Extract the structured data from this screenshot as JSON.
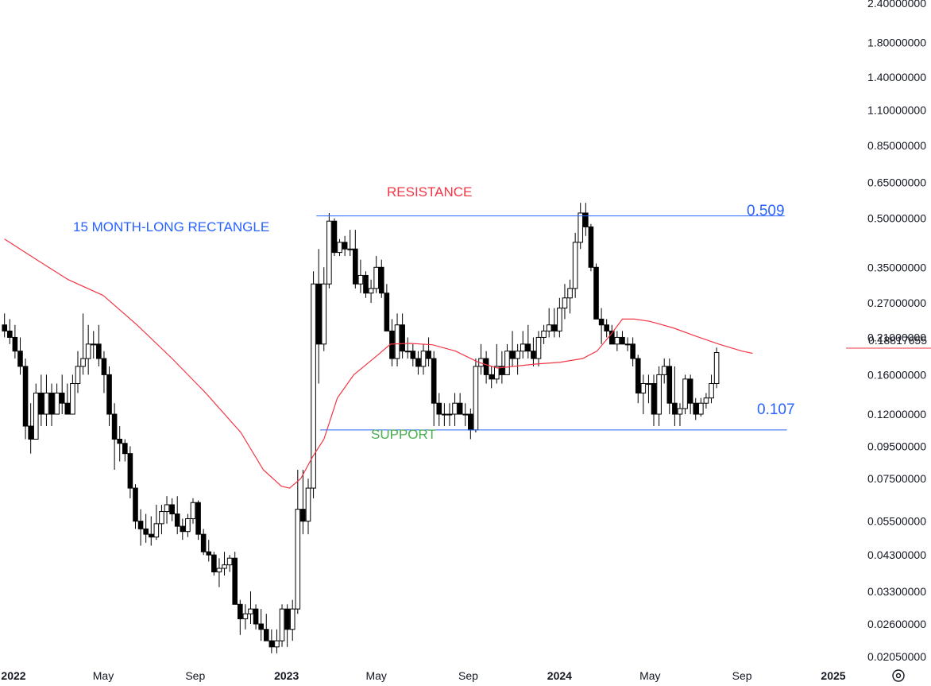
{
  "chart_data": {
    "type": "candlestick",
    "scale": "log",
    "y_ticks": [
      "2.40000000",
      "1.80000000",
      "1.40000000",
      "1.10000000",
      "0.85000000",
      "0.65000000",
      "0.50000000",
      "0.35000000",
      "0.27000000",
      "0.21000000",
      "0.16000000",
      "0.12000000",
      "0.09500000",
      "0.07500000",
      "0.05500000",
      "0.04300000",
      "0.03300000",
      "0.02600000",
      "0.02050000"
    ],
    "y_tick_values": [
      2.4,
      1.8,
      1.4,
      1.1,
      0.85,
      0.65,
      0.5,
      0.35,
      0.27,
      0.21,
      0.16,
      0.12,
      0.095,
      0.075,
      0.055,
      0.043,
      0.033,
      0.026,
      0.0205
    ],
    "x_ticks": [
      {
        "label": "2022",
        "date": "2022-01-01",
        "year": true
      },
      {
        "label": "May",
        "date": "2022-05-01",
        "year": false
      },
      {
        "label": "Sep",
        "date": "2022-09-01",
        "year": false
      },
      {
        "label": "2023",
        "date": "2023-01-01",
        "year": true
      },
      {
        "label": "May",
        "date": "2023-05-01",
        "year": false
      },
      {
        "label": "Sep",
        "date": "2023-09-01",
        "year": false
      },
      {
        "label": "2024",
        "date": "2024-01-01",
        "year": true
      },
      {
        "label": "May",
        "date": "2024-05-01",
        "year": false
      },
      {
        "label": "Sep",
        "date": "2024-09-01",
        "year": false
      },
      {
        "label": "2025",
        "date": "2025-01-01",
        "year": true
      }
    ],
    "last_price_label": "0.18817655",
    "last_price": 0.18817655,
    "annotations": {
      "title": "15 MONTH-LONG RECTANGLE",
      "resistance_label": "RESISTANCE",
      "support_label": "SUPPORT",
      "resistance_value_label": "0.509",
      "support_value_label": "0.107"
    },
    "levels": {
      "resistance": 0.509,
      "resistance_start": "2023-02-10",
      "resistance_end": "2024-10-28",
      "support": 0.107,
      "support_start": "2023-02-15",
      "support_end": "2024-10-31"
    },
    "weekly_candles": [
      [
        0.23,
        0.25,
        0.21,
        0.22
      ],
      [
        0.22,
        0.24,
        0.2,
        0.21
      ],
      [
        0.21,
        0.23,
        0.18,
        0.19
      ],
      [
        0.19,
        0.21,
        0.16,
        0.17
      ],
      [
        0.17,
        0.18,
        0.1,
        0.11
      ],
      [
        0.11,
        0.13,
        0.09,
        0.1
      ],
      [
        0.1,
        0.15,
        0.1,
        0.14
      ],
      [
        0.14,
        0.16,
        0.11,
        0.12
      ],
      [
        0.12,
        0.16,
        0.11,
        0.14
      ],
      [
        0.14,
        0.15,
        0.11,
        0.12
      ],
      [
        0.12,
        0.15,
        0.12,
        0.14
      ],
      [
        0.14,
        0.16,
        0.12,
        0.13
      ],
      [
        0.13,
        0.15,
        0.12,
        0.12
      ],
      [
        0.12,
        0.16,
        0.12,
        0.15
      ],
      [
        0.15,
        0.19,
        0.14,
        0.17
      ],
      [
        0.17,
        0.25,
        0.16,
        0.18
      ],
      [
        0.18,
        0.23,
        0.16,
        0.2
      ],
      [
        0.2,
        0.22,
        0.18,
        0.2
      ],
      [
        0.2,
        0.23,
        0.17,
        0.18
      ],
      [
        0.18,
        0.19,
        0.14,
        0.16
      ],
      [
        0.16,
        0.17,
        0.11,
        0.12
      ],
      [
        0.12,
        0.13,
        0.08,
        0.1
      ],
      [
        0.1,
        0.11,
        0.085,
        0.097
      ],
      [
        0.097,
        0.1,
        0.085,
        0.09
      ],
      [
        0.09,
        0.095,
        0.065,
        0.07
      ],
      [
        0.07,
        0.072,
        0.052,
        0.055
      ],
      [
        0.055,
        0.06,
        0.046,
        0.052
      ],
      [
        0.052,
        0.058,
        0.047,
        0.05
      ],
      [
        0.05,
        0.057,
        0.046,
        0.049
      ],
      [
        0.049,
        0.062,
        0.048,
        0.054
      ],
      [
        0.054,
        0.062,
        0.05,
        0.059
      ],
      [
        0.059,
        0.066,
        0.054,
        0.062
      ],
      [
        0.062,
        0.065,
        0.055,
        0.058
      ],
      [
        0.058,
        0.066,
        0.05,
        0.053
      ],
      [
        0.053,
        0.056,
        0.048,
        0.051
      ],
      [
        0.051,
        0.058,
        0.049,
        0.056
      ],
      [
        0.056,
        0.065,
        0.054,
        0.063
      ],
      [
        0.063,
        0.064,
        0.048,
        0.05
      ],
      [
        0.05,
        0.052,
        0.043,
        0.044
      ],
      [
        0.044,
        0.048,
        0.041,
        0.043
      ],
      [
        0.043,
        0.044,
        0.037,
        0.038
      ],
      [
        0.038,
        0.042,
        0.034,
        0.039
      ],
      [
        0.039,
        0.044,
        0.037,
        0.04
      ],
      [
        0.04,
        0.043,
        0.038,
        0.042
      ],
      [
        0.042,
        0.044,
        0.03,
        0.03
      ],
      [
        0.03,
        0.031,
        0.024,
        0.027
      ],
      [
        0.027,
        0.03,
        0.025,
        0.028
      ],
      [
        0.028,
        0.033,
        0.026,
        0.029
      ],
      [
        0.029,
        0.03,
        0.025,
        0.026
      ],
      [
        0.026,
        0.029,
        0.023,
        0.025
      ],
      [
        0.025,
        0.028,
        0.023,
        0.023
      ],
      [
        0.023,
        0.025,
        0.021,
        0.022
      ],
      [
        0.022,
        0.025,
        0.021,
        0.023
      ],
      [
        0.023,
        0.03,
        0.022,
        0.029
      ],
      [
        0.029,
        0.03,
        0.022,
        0.025
      ],
      [
        0.025,
        0.031,
        0.023,
        0.029
      ],
      [
        0.029,
        0.08,
        0.028,
        0.06
      ],
      [
        0.06,
        0.08,
        0.05,
        0.055
      ],
      [
        0.055,
        0.075,
        0.05,
        0.07
      ],
      [
        0.07,
        0.34,
        0.065,
        0.31
      ],
      [
        0.31,
        0.4,
        0.15,
        0.2
      ],
      [
        0.2,
        0.35,
        0.19,
        0.31
      ],
      [
        0.31,
        0.52,
        0.3,
        0.49
      ],
      [
        0.49,
        0.5,
        0.38,
        0.39
      ],
      [
        0.39,
        0.43,
        0.38,
        0.42
      ],
      [
        0.42,
        0.44,
        0.38,
        0.4
      ],
      [
        0.4,
        0.46,
        0.38,
        0.4
      ],
      [
        0.4,
        0.46,
        0.3,
        0.31
      ],
      [
        0.31,
        0.37,
        0.29,
        0.33
      ],
      [
        0.33,
        0.34,
        0.28,
        0.29
      ],
      [
        0.29,
        0.32,
        0.27,
        0.3
      ],
      [
        0.3,
        0.38,
        0.29,
        0.35
      ],
      [
        0.35,
        0.37,
        0.28,
        0.29
      ],
      [
        0.29,
        0.31,
        0.22,
        0.22
      ],
      [
        0.22,
        0.24,
        0.17,
        0.18
      ],
      [
        0.18,
        0.25,
        0.17,
        0.23
      ],
      [
        0.23,
        0.25,
        0.18,
        0.19
      ],
      [
        0.19,
        0.21,
        0.18,
        0.19
      ],
      [
        0.19,
        0.2,
        0.17,
        0.18
      ],
      [
        0.18,
        0.19,
        0.16,
        0.17
      ],
      [
        0.17,
        0.2,
        0.16,
        0.19
      ],
      [
        0.19,
        0.21,
        0.17,
        0.18
      ],
      [
        0.18,
        0.19,
        0.11,
        0.13
      ],
      [
        0.13,
        0.14,
        0.11,
        0.12
      ],
      [
        0.12,
        0.13,
        0.11,
        0.12
      ],
      [
        0.12,
        0.13,
        0.11,
        0.12
      ],
      [
        0.12,
        0.14,
        0.11,
        0.13
      ],
      [
        0.13,
        0.14,
        0.12,
        0.12
      ],
      [
        0.12,
        0.13,
        0.11,
        0.12
      ],
      [
        0.12,
        0.125,
        0.1,
        0.107
      ],
      [
        0.107,
        0.18,
        0.105,
        0.17
      ],
      [
        0.17,
        0.2,
        0.16,
        0.18
      ],
      [
        0.18,
        0.19,
        0.15,
        0.16
      ],
      [
        0.16,
        0.17,
        0.145,
        0.155
      ],
      [
        0.155,
        0.2,
        0.15,
        0.17
      ],
      [
        0.17,
        0.19,
        0.15,
        0.16
      ],
      [
        0.16,
        0.2,
        0.16,
        0.19
      ],
      [
        0.19,
        0.22,
        0.17,
        0.18
      ],
      [
        0.18,
        0.2,
        0.16,
        0.19
      ],
      [
        0.19,
        0.22,
        0.18,
        0.2
      ],
      [
        0.2,
        0.23,
        0.18,
        0.19
      ],
      [
        0.19,
        0.21,
        0.17,
        0.18
      ],
      [
        0.18,
        0.22,
        0.17,
        0.21
      ],
      [
        0.21,
        0.23,
        0.2,
        0.22
      ],
      [
        0.22,
        0.26,
        0.21,
        0.23
      ],
      [
        0.23,
        0.26,
        0.21,
        0.22
      ],
      [
        0.22,
        0.28,
        0.21,
        0.26
      ],
      [
        0.26,
        0.31,
        0.24,
        0.28
      ],
      [
        0.28,
        0.32,
        0.25,
        0.3
      ],
      [
        0.3,
        0.45,
        0.28,
        0.42
      ],
      [
        0.42,
        0.56,
        0.4,
        0.52
      ],
      [
        0.52,
        0.56,
        0.44,
        0.47
      ],
      [
        0.47,
        0.48,
        0.34,
        0.35
      ],
      [
        0.35,
        0.36,
        0.24,
        0.24
      ],
      [
        0.24,
        0.26,
        0.2,
        0.23
      ],
      [
        0.23,
        0.24,
        0.21,
        0.22
      ],
      [
        0.22,
        0.23,
        0.2,
        0.2
      ],
      [
        0.2,
        0.22,
        0.19,
        0.21
      ],
      [
        0.21,
        0.22,
        0.2,
        0.2
      ],
      [
        0.2,
        0.21,
        0.19,
        0.2
      ],
      [
        0.2,
        0.21,
        0.17,
        0.18
      ],
      [
        0.18,
        0.185,
        0.13,
        0.14
      ],
      [
        0.14,
        0.16,
        0.12,
        0.15
      ],
      [
        0.15,
        0.16,
        0.13,
        0.15
      ],
      [
        0.15,
        0.16,
        0.11,
        0.12
      ],
      [
        0.12,
        0.17,
        0.11,
        0.16
      ],
      [
        0.16,
        0.18,
        0.15,
        0.17
      ],
      [
        0.17,
        0.18,
        0.12,
        0.13
      ],
      [
        0.13,
        0.17,
        0.11,
        0.12
      ],
      [
        0.12,
        0.13,
        0.11,
        0.125
      ],
      [
        0.125,
        0.16,
        0.12,
        0.155
      ],
      [
        0.155,
        0.16,
        0.12,
        0.13
      ],
      [
        0.13,
        0.135,
        0.115,
        0.12
      ],
      [
        0.12,
        0.135,
        0.118,
        0.13
      ],
      [
        0.13,
        0.14,
        0.125,
        0.135
      ],
      [
        0.135,
        0.16,
        0.13,
        0.15
      ],
      [
        0.15,
        0.195,
        0.145,
        0.188
      ]
    ],
    "ma_series": [
      [
        "2021-12-20",
        0.43
      ],
      [
        "2022-02-01",
        0.37
      ],
      [
        "2022-03-15",
        0.32
      ],
      [
        "2022-05-01",
        0.285
      ],
      [
        "2022-06-15",
        0.23
      ],
      [
        "2022-08-01",
        0.18
      ],
      [
        "2022-09-15",
        0.14
      ],
      [
        "2022-11-01",
        0.105
      ],
      [
        "2022-12-01",
        0.08
      ],
      [
        "2022-12-25",
        0.071
      ],
      [
        "2023-01-05",
        0.07
      ],
      [
        "2023-01-20",
        0.075
      ],
      [
        "2023-02-05",
        0.088
      ],
      [
        "2023-02-20",
        0.1
      ],
      [
        "2023-03-10",
        0.135
      ],
      [
        "2023-04-01",
        0.16
      ],
      [
        "2023-05-01",
        0.183
      ],
      [
        "2023-05-20",
        0.2
      ],
      [
        "2023-06-15",
        0.201
      ],
      [
        "2023-07-15",
        0.199
      ],
      [
        "2023-08-15",
        0.19
      ],
      [
        "2023-09-15",
        0.175
      ],
      [
        "2023-10-10",
        0.168
      ],
      [
        "2023-11-01",
        0.17
      ],
      [
        "2023-12-01",
        0.173
      ],
      [
        "2024-01-01",
        0.175
      ],
      [
        "2024-02-01",
        0.18
      ],
      [
        "2024-02-20",
        0.19
      ],
      [
        "2024-03-10",
        0.215
      ],
      [
        "2024-03-25",
        0.24
      ],
      [
        "2024-04-10",
        0.24
      ],
      [
        "2024-05-01",
        0.236
      ],
      [
        "2024-06-01",
        0.225
      ],
      [
        "2024-07-01",
        0.212
      ],
      [
        "2024-08-01",
        0.2
      ],
      [
        "2024-09-01",
        0.19
      ],
      [
        "2024-09-15",
        0.187
      ]
    ],
    "first_candle_date": "2021-12-20",
    "candle_interval_days": 7,
    "colors": {
      "up_fill": "#ffffff",
      "down_fill": "#000000",
      "candle_stroke": "#000000",
      "ma": "#f23645",
      "levels": "#2962ff",
      "title": "#2962ff",
      "resistance": "#f23645",
      "support": "#4caf50",
      "value_labels": "#2962ff"
    }
  }
}
